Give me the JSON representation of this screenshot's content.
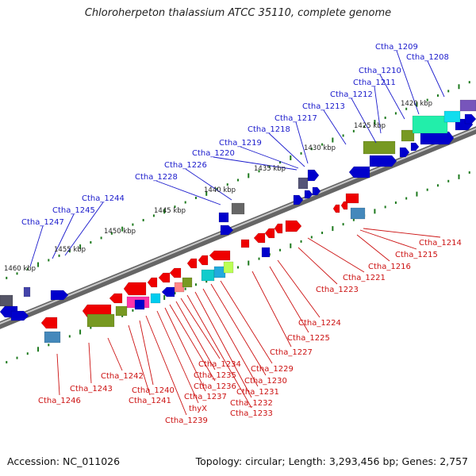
{
  "title": "Chloroherpeton thalassium ATCC 35110, complete genome",
  "footer": {
    "accession": "Accession: NC_011026",
    "stats": "Topology: circular; Length: 3,293,456 bp; Genes: 2,757"
  },
  "colors": {
    "top_labels": "#1a1acc",
    "bottom_labels": "#cc1111",
    "backbone": "#888888",
    "ticks": "#1e7a1e"
  },
  "kbp_labels": [
    "1460 kbp",
    "1455 kbp",
    "1450 kbp",
    "1445 kbp",
    "1440 kbp",
    "1435 kbp",
    "1430 kbp",
    "1425 kbp",
    "1420 kbp"
  ],
  "top_genes": [
    "Ctha_1247",
    "Ctha_1245",
    "Ctha_1244",
    "Ctha_1228",
    "Ctha_1226",
    "Ctha_1220",
    "Ctha_1219",
    "Ctha_1218",
    "Ctha_1217",
    "Ctha_1213",
    "Ctha_1212",
    "Ctha_1211",
    "Ctha_1210",
    "Ctha_1209",
    "Ctha_1208"
  ],
  "bottom_genes": [
    "Ctha_1246",
    "Ctha_1243",
    "Ctha_1242",
    "Ctha_1241",
    "Ctha_1240",
    "Ctha_1239",
    "thyX",
    "Ctha_1237",
    "Ctha_1236",
    "Ctha_1235",
    "Ctha_1234",
    "Ctha_1233",
    "Ctha_1232",
    "Ctha_1231",
    "Ctha_1230",
    "Ctha_1229",
    "Ctha_1227",
    "Ctha_1225",
    "Ctha_1224",
    "Ctha_1223",
    "Ctha_1221",
    "Ctha_1216",
    "Ctha_1215",
    "Ctha_1214"
  ]
}
